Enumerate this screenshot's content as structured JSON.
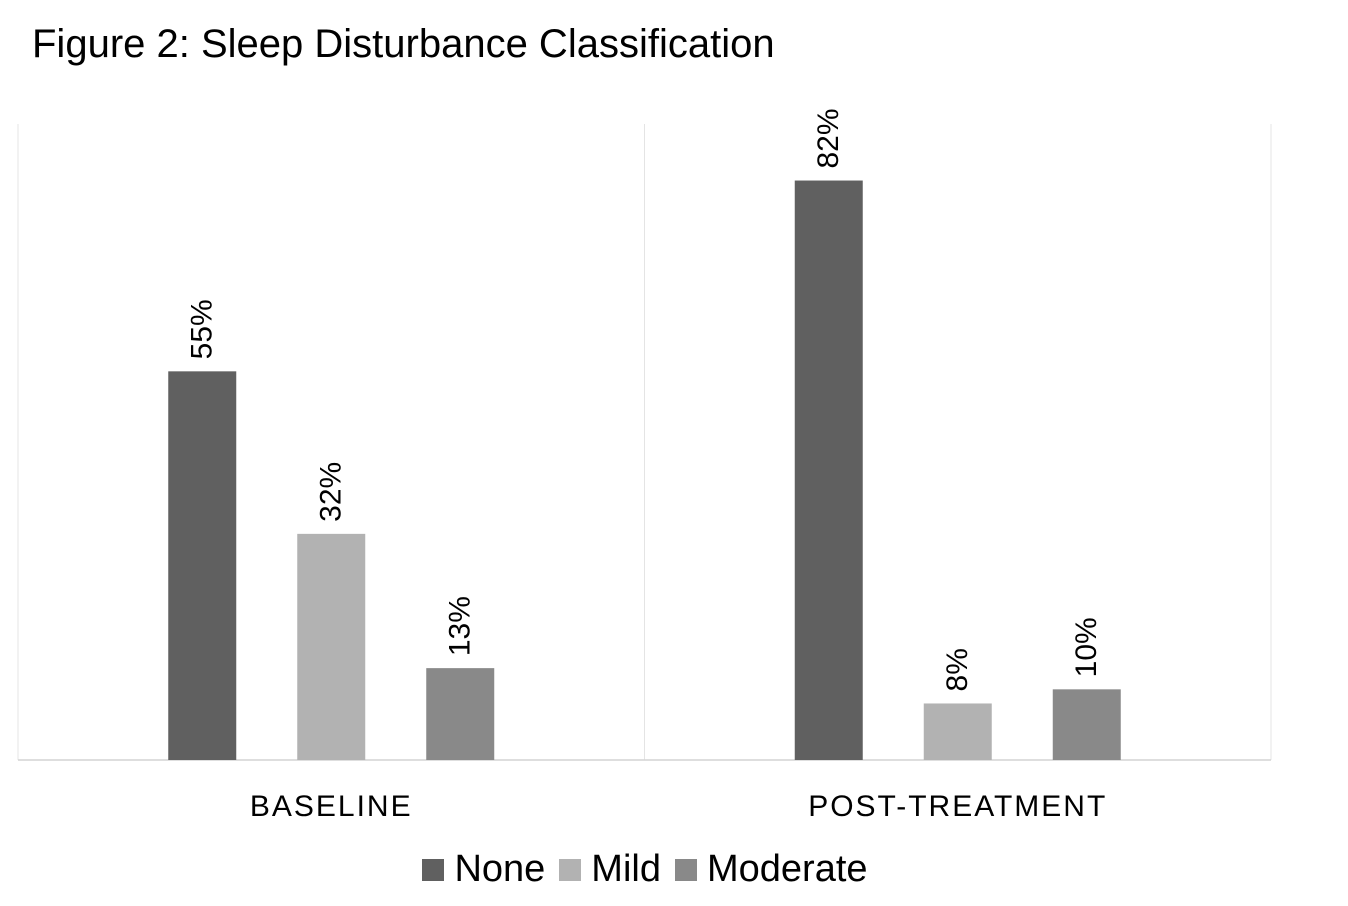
{
  "chart_data": {
    "type": "bar",
    "title": "Figure 2: Sleep Disturbance Classification",
    "xlabel": "",
    "ylabel": "",
    "categories": [
      "BASELINE",
      "POST-TREATMENT"
    ],
    "series": [
      {
        "name": "None",
        "values": [
          55,
          82
        ],
        "color": "#606060"
      },
      {
        "name": "Mild",
        "values": [
          32,
          8
        ],
        "color": "#b2b2b2"
      },
      {
        "name": "Moderate",
        "values": [
          13,
          10
        ],
        "color": "#898989"
      }
    ],
    "ylim": [
      0,
      90
    ],
    "value_suffix": "%",
    "grid": false,
    "legend": "bottom"
  }
}
